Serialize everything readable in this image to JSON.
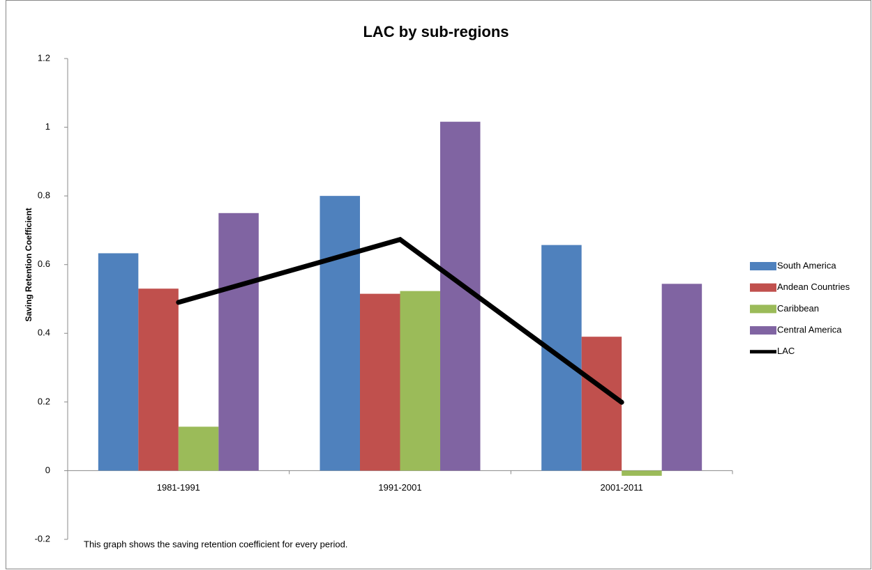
{
  "chart_data": {
    "type": "bar",
    "title": "LAC by sub-regions",
    "y_label": "Saving Retention Coefficient",
    "note": "This graph shows the saving retention coefficient for every period.",
    "categories": [
      "1981-1991",
      "1991-2001",
      "2001-2011"
    ],
    "series": [
      {
        "name": "South America",
        "color": "#4f81bd",
        "values": [
          0.633,
          0.8,
          0.657
        ]
      },
      {
        "name": "Andean Countries",
        "color": "#c0504d",
        "values": [
          0.53,
          0.515,
          0.39
        ]
      },
      {
        "name": "Caribbean",
        "color": "#9bbb59",
        "values": [
          0.128,
          0.523,
          -0.015
        ]
      },
      {
        "name": "Central America",
        "color": "#8064a2",
        "values": [
          0.75,
          1.016,
          0.544
        ]
      },
      {
        "name": "LAC",
        "color": "#000000",
        "type": "line",
        "values": [
          0.49,
          0.673,
          0.199
        ]
      }
    ],
    "ylim": [
      -0.2,
      1.2
    ],
    "yticks": [
      -0.2,
      0,
      0.2,
      0.4,
      0.6,
      0.8,
      1,
      1.2
    ],
    "grid": false,
    "legend": "right"
  }
}
